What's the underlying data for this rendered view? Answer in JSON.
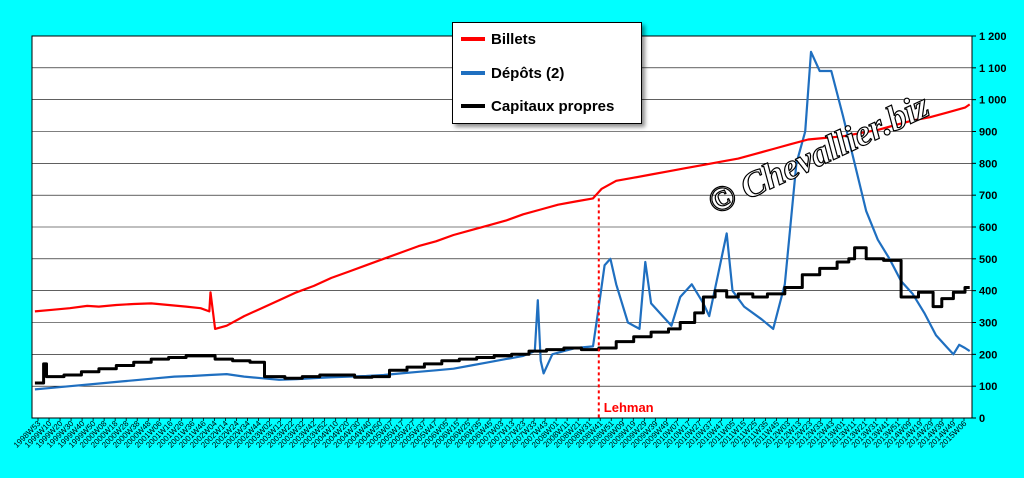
{
  "chart_data": {
    "type": "line",
    "ylim": [
      0,
      1200
    ],
    "y_ticks": [
      "0",
      "100",
      "200",
      "300",
      "400",
      "500",
      "600",
      "700",
      "800",
      "900",
      "1 000",
      "1 100",
      "1 200"
    ],
    "grid": true,
    "legend_position": "top-center",
    "x_range": [
      "1998W53",
      "2015W06"
    ],
    "x_tick_labels": [
      "1998W53",
      "1999W10",
      "1999W20",
      "1999W30",
      "1999W40",
      "1999W50",
      "2000W08",
      "2000W18",
      "2000W28",
      "2000W38",
      "2000W48",
      "2001W06",
      "2001W16",
      "2001W26",
      "2001W36",
      "2001W46",
      "2002W04",
      "2002W14",
      "2002W24",
      "2002W34",
      "2002W44",
      "2003W02",
      "2003W12",
      "2003W22",
      "2003W32",
      "2003W42",
      "2003W52",
      "2004W10",
      "2004W20",
      "2004W30",
      "2004W40",
      "2004W50",
      "2005W07",
      "2005W17",
      "2005W27",
      "2005W37",
      "2005W47",
      "2006W05",
      "2006W15",
      "2006W25",
      "2006W35",
      "2006W45",
      "2007W03",
      "2007W13",
      "2007W23",
      "2007W33",
      "2007W43",
      "2008W01",
      "2008W11",
      "2008W21",
      "2008W31",
      "2008W41",
      "2008W51",
      "2009W09",
      "2009W19",
      "2009W29",
      "2009W39",
      "2009W49",
      "2010W07",
      "2010W17",
      "2010W27",
      "2010W37",
      "2010W47",
      "2011W05",
      "2011W15",
      "2011W25",
      "2011W35",
      "2011W45",
      "2012W03",
      "2012W13",
      "2012W23",
      "2012W33",
      "2012W43",
      "2013W01",
      "2013W11",
      "2013W21",
      "2013W31",
      "2013W41",
      "2013W51",
      "2014W09",
      "2014W19",
      "2014W29",
      "2014W39",
      "2014W49",
      "2015W06"
    ],
    "annotations": [
      {
        "label": "Lehman",
        "x": 2008.7,
        "color": "#ff0000"
      }
    ],
    "watermark": "© Chevallier.biz",
    "series": [
      {
        "name": "Billets",
        "color": "#ff0000",
        "points": [
          [
            1999.0,
            335
          ],
          [
            1999.3,
            340
          ],
          [
            1999.6,
            345
          ],
          [
            1999.9,
            352
          ],
          [
            2000.1,
            350
          ],
          [
            2000.4,
            355
          ],
          [
            2000.7,
            358
          ],
          [
            2001.0,
            360
          ],
          [
            2001.3,
            355
          ],
          [
            2001.6,
            350
          ],
          [
            2001.85,
            345
          ],
          [
            2002.0,
            335
          ],
          [
            2002.02,
            395
          ],
          [
            2002.1,
            280
          ],
          [
            2002.3,
            290
          ],
          [
            2002.6,
            320
          ],
          [
            2002.9,
            345
          ],
          [
            2003.2,
            370
          ],
          [
            2003.5,
            395
          ],
          [
            2003.8,
            415
          ],
          [
            2004.1,
            440
          ],
          [
            2004.4,
            460
          ],
          [
            2004.7,
            480
          ],
          [
            2005.0,
            500
          ],
          [
            2005.3,
            520
          ],
          [
            2005.6,
            540
          ],
          [
            2005.9,
            555
          ],
          [
            2006.2,
            575
          ],
          [
            2006.5,
            590
          ],
          [
            2006.8,
            605
          ],
          [
            2007.1,
            620
          ],
          [
            2007.4,
            640
          ],
          [
            2007.7,
            655
          ],
          [
            2008.0,
            670
          ],
          [
            2008.3,
            680
          ],
          [
            2008.6,
            690
          ],
          [
            2008.75,
            720
          ],
          [
            2009.0,
            745
          ],
          [
            2009.3,
            755
          ],
          [
            2009.6,
            765
          ],
          [
            2009.9,
            775
          ],
          [
            2010.2,
            785
          ],
          [
            2010.5,
            795
          ],
          [
            2010.8,
            805
          ],
          [
            2011.1,
            815
          ],
          [
            2011.4,
            830
          ],
          [
            2011.7,
            845
          ],
          [
            2012.0,
            860
          ],
          [
            2012.3,
            875
          ],
          [
            2012.6,
            880
          ],
          [
            2012.9,
            885
          ],
          [
            2013.2,
            895
          ],
          [
            2013.5,
            905
          ],
          [
            2013.8,
            920
          ],
          [
            2014.1,
            935
          ],
          [
            2014.4,
            945
          ],
          [
            2014.7,
            960
          ],
          [
            2015.0,
            975
          ],
          [
            2015.08,
            985
          ]
        ]
      },
      {
        "name": "Dépôts (2)",
        "color": "#1f6fc0",
        "points": [
          [
            1999.0,
            90
          ],
          [
            1999.3,
            95
          ],
          [
            1999.6,
            100
          ],
          [
            1999.9,
            105
          ],
          [
            2000.2,
            110
          ],
          [
            2000.5,
            115
          ],
          [
            2000.8,
            120
          ],
          [
            2001.1,
            125
          ],
          [
            2001.4,
            130
          ],
          [
            2001.7,
            132
          ],
          [
            2002.0,
            135
          ],
          [
            2002.3,
            138
          ],
          [
            2002.6,
            130
          ],
          [
            2002.9,
            125
          ],
          [
            2003.2,
            120
          ],
          [
            2003.5,
            122
          ],
          [
            2003.8,
            125
          ],
          [
            2004.1,
            128
          ],
          [
            2004.4,
            130
          ],
          [
            2004.7,
            132
          ],
          [
            2005.0,
            135
          ],
          [
            2005.3,
            140
          ],
          [
            2005.6,
            145
          ],
          [
            2005.9,
            150
          ],
          [
            2006.2,
            155
          ],
          [
            2006.5,
            165
          ],
          [
            2006.8,
            175
          ],
          [
            2007.1,
            185
          ],
          [
            2007.4,
            195
          ],
          [
            2007.6,
            210
          ],
          [
            2007.65,
            370
          ],
          [
            2007.7,
            180
          ],
          [
            2007.75,
            140
          ],
          [
            2007.9,
            200
          ],
          [
            2008.1,
            210
          ],
          [
            2008.3,
            220
          ],
          [
            2008.6,
            225
          ],
          [
            2008.7,
            350
          ],
          [
            2008.8,
            480
          ],
          [
            2008.9,
            500
          ],
          [
            2009.0,
            420
          ],
          [
            2009.2,
            300
          ],
          [
            2009.4,
            280
          ],
          [
            2009.5,
            490
          ],
          [
            2009.6,
            360
          ],
          [
            2009.8,
            320
          ],
          [
            2009.95,
            290
          ],
          [
            2010.1,
            380
          ],
          [
            2010.3,
            420
          ],
          [
            2010.5,
            360
          ],
          [
            2010.6,
            320
          ],
          [
            2010.75,
            450
          ],
          [
            2010.9,
            580
          ],
          [
            2011.0,
            400
          ],
          [
            2011.2,
            350
          ],
          [
            2011.5,
            310
          ],
          [
            2011.7,
            280
          ],
          [
            2011.9,
            420
          ],
          [
            2012.1,
            800
          ],
          [
            2012.25,
            900
          ],
          [
            2012.35,
            1150
          ],
          [
            2012.5,
            1090
          ],
          [
            2012.7,
            1090
          ],
          [
            2012.9,
            950
          ],
          [
            2013.1,
            800
          ],
          [
            2013.3,
            650
          ],
          [
            2013.5,
            560
          ],
          [
            2013.7,
            500
          ],
          [
            2013.9,
            430
          ],
          [
            2014.1,
            390
          ],
          [
            2014.3,
            330
          ],
          [
            2014.5,
            260
          ],
          [
            2014.7,
            220
          ],
          [
            2014.8,
            200
          ],
          [
            2014.9,
            230
          ],
          [
            2015.0,
            220
          ],
          [
            2015.08,
            210
          ]
        ]
      },
      {
        "name": "Capitaux propres",
        "color": "#000000",
        "step": true,
        "points": [
          [
            1999.0,
            110
          ],
          [
            1999.15,
            170
          ],
          [
            1999.2,
            130
          ],
          [
            1999.5,
            135
          ],
          [
            1999.8,
            145
          ],
          [
            2000.1,
            155
          ],
          [
            2000.4,
            165
          ],
          [
            2000.7,
            175
          ],
          [
            2001.0,
            185
          ],
          [
            2001.3,
            190
          ],
          [
            2001.6,
            195
          ],
          [
            2001.9,
            195
          ],
          [
            2002.1,
            185
          ],
          [
            2002.4,
            180
          ],
          [
            2002.7,
            175
          ],
          [
            2002.95,
            130
          ],
          [
            2003.3,
            125
          ],
          [
            2003.6,
            130
          ],
          [
            2003.9,
            135
          ],
          [
            2004.2,
            135
          ],
          [
            2004.5,
            128
          ],
          [
            2004.8,
            130
          ],
          [
            2005.1,
            150
          ],
          [
            2005.4,
            160
          ],
          [
            2005.7,
            170
          ],
          [
            2006.0,
            180
          ],
          [
            2006.3,
            185
          ],
          [
            2006.6,
            190
          ],
          [
            2006.9,
            195
          ],
          [
            2007.2,
            200
          ],
          [
            2007.5,
            210
          ],
          [
            2007.8,
            215
          ],
          [
            2008.1,
            220
          ],
          [
            2008.4,
            215
          ],
          [
            2008.7,
            220
          ],
          [
            2009.0,
            240
          ],
          [
            2009.3,
            255
          ],
          [
            2009.6,
            270
          ],
          [
            2009.9,
            280
          ],
          [
            2010.1,
            300
          ],
          [
            2010.35,
            330
          ],
          [
            2010.5,
            380
          ],
          [
            2010.7,
            400
          ],
          [
            2010.9,
            380
          ],
          [
            2011.1,
            390
          ],
          [
            2011.35,
            380
          ],
          [
            2011.6,
            390
          ],
          [
            2011.9,
            410
          ],
          [
            2012.2,
            450
          ],
          [
            2012.5,
            470
          ],
          [
            2012.8,
            490
          ],
          [
            2013.0,
            500
          ],
          [
            2013.1,
            535
          ],
          [
            2013.3,
            500
          ],
          [
            2013.6,
            495
          ],
          [
            2013.9,
            380
          ],
          [
            2014.2,
            395
          ],
          [
            2014.45,
            350
          ],
          [
            2014.6,
            375
          ],
          [
            2014.8,
            395
          ],
          [
            2015.0,
            410
          ],
          [
            2015.08,
            410
          ]
        ]
      }
    ]
  }
}
